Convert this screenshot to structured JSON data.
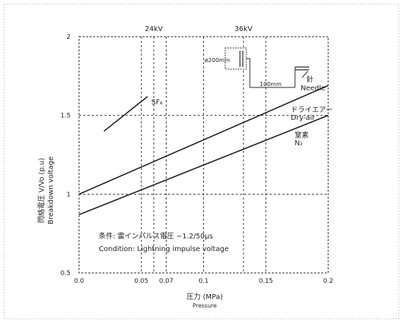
{
  "chart_data": {
    "type": "line",
    "title": "",
    "xlabel": "圧力 (MPa)",
    "xlabel_en": "Pressure",
    "ylabel": "閃絡電圧 V/Vo (p.u)",
    "ylabel_en": "Breakdown voltage",
    "xlim": [
      0.0,
      0.2
    ],
    "ylim": [
      0.5,
      2.0
    ],
    "x_ticks": [
      0.0,
      0.05,
      0.07,
      0.1,
      0.15,
      0.2
    ],
    "x_tick_labels": [
      "0.0",
      "0.05",
      "0.07",
      "0.1",
      "0.15",
      "0.2"
    ],
    "y_ticks": [
      0.5,
      1.0,
      1.5,
      2.0
    ],
    "y_tick_labels": [
      "0.5",
      "1",
      "1.5",
      "2"
    ],
    "grid": true,
    "grid_style": "dashed",
    "series": [
      {
        "name": "SF6",
        "label_lines": [
          "SF₆"
        ],
        "x": [
          0.02,
          0.055
        ],
        "y": [
          1.4,
          1.62
        ],
        "label_at": [
          0.058,
          1.57
        ]
      },
      {
        "name": "ドライエアー Dry-air",
        "label_lines": [
          "ドライエアー",
          "Dry-air"
        ],
        "x": [
          0.0,
          0.2
        ],
        "y": [
          1.0,
          1.69
        ],
        "label_at": [
          0.17,
          1.52
        ]
      },
      {
        "name": "窒素 N2",
        "label_lines": [
          "窒素",
          "N₂"
        ],
        "x": [
          0.0,
          0.2
        ],
        "y": [
          0.87,
          1.5
        ],
        "label_at": [
          0.173,
          1.36
        ]
      }
    ],
    "voltage_markers": [
      {
        "label": "24kV",
        "x": 0.06
      },
      {
        "label": "36kV",
        "x": 0.132
      }
    ],
    "annotations": {
      "condition_jp": "条件: 雷インパルス電圧 −1.2/50μs",
      "condition_en": "Condition: Lightning impulse voltage",
      "electrode_diameter": "ø200mm",
      "gap": "100mm",
      "needle_jp": "針",
      "needle_en": "Needle"
    },
    "colors": {
      "line": "#1a1a1a",
      "grid": "#333333"
    }
  }
}
